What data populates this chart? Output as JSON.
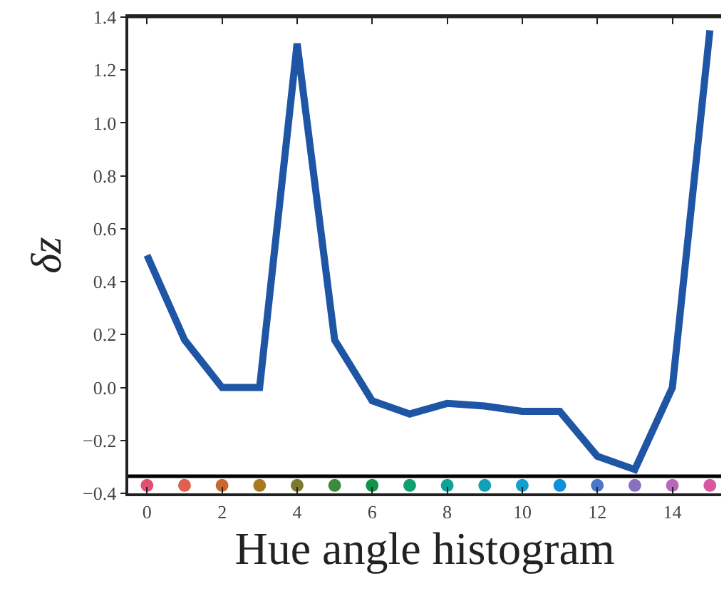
{
  "chart_data": {
    "type": "line",
    "xlabel": "Hue angle histogram",
    "ylabel": "δz",
    "x": [
      0,
      1,
      2,
      3,
      4,
      5,
      6,
      7,
      8,
      9,
      10,
      11,
      12,
      13,
      14,
      15
    ],
    "series": [
      {
        "color": "#1f55a5",
        "values": [
          0.5,
          0.18,
          0.0,
          0.0,
          1.3,
          0.18,
          -0.05,
          -0.1,
          -0.06,
          -0.07,
          -0.09,
          -0.09,
          -0.26,
          -0.31,
          0.0,
          1.35
        ]
      },
      {
        "type": "scatter",
        "colors": [
          "#e05070",
          "#e06050",
          "#c86a30",
          "#a87a20",
          "#7a7a30",
          "#3a8a40",
          "#10944a",
          "#10a070",
          "#10a098",
          "#10a0b8",
          "#10a0d0",
          "#1090d8",
          "#4a78c8",
          "#8870c0",
          "#b868b8",
          "#d858a0"
        ],
        "values": [
          -0.37,
          -0.37,
          -0.37,
          -0.37,
          -0.37,
          -0.37,
          -0.37,
          -0.37,
          -0.37,
          -0.37,
          -0.37,
          -0.37,
          -0.37,
          -0.37,
          -0.37,
          -0.37
        ]
      }
    ],
    "ref_lines": [
      {
        "axis": "y",
        "value": -0.335,
        "color": "#000000"
      }
    ],
    "xlim": [
      -0.5,
      15.3
    ],
    "xticks": [
      0,
      2,
      4,
      6,
      8,
      10,
      12,
      14
    ],
    "ylim": [
      -0.4,
      1.4
    ],
    "yticks": [
      -0.4,
      -0.2,
      {
        "value": 0,
        "label": "0.0"
      },
      0.2,
      0.4,
      0.6,
      0.8,
      {
        "value": 1,
        "label": "1.0"
      },
      1.2,
      1.4
    ]
  }
}
